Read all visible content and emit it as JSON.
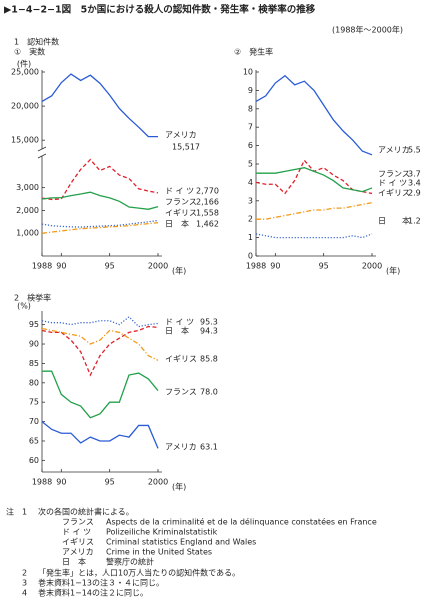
{
  "header": {
    "title": "▶1−4−2−1図　5か国における殺人の認知件数・発生率・検挙率の推移",
    "period": "(1988年～2000年)"
  },
  "chart_data": [
    {
      "type": "line",
      "section": "1　認知件数",
      "title": "①　実数",
      "y_label": "(件)",
      "x_label": "(年)",
      "x": [
        1988,
        1989,
        1990,
        1991,
        1992,
        1993,
        1994,
        1995,
        1996,
        1997,
        1998,
        1999,
        2000
      ],
      "xlim": [
        1988,
        2000
      ],
      "xticks": [
        1988,
        {
          "value": 1990,
          "label": "90"
        },
        {
          "value": 1995,
          "label": "95"
        },
        2000
      ],
      "ylim": [
        0,
        25000
      ],
      "axis_break": [
        4300,
        14000
      ],
      "yticks": [
        {
          "value": 1000,
          "label": "1,000"
        },
        {
          "value": 2000,
          "label": "2,000"
        },
        {
          "value": 3000,
          "label": "3,000"
        },
        {
          "value": 15000,
          "label": "15,000"
        },
        {
          "value": 20000,
          "label": "20,000"
        },
        {
          "value": 25000,
          "label": "25,000"
        }
      ],
      "series": [
        {
          "name": "アメリカ",
          "color": "#2a5bd7",
          "style": "solid",
          "values": [
            20680,
            21500,
            23440,
            24700,
            23760,
            24530,
            23330,
            21610,
            19650,
            18210,
            16910,
            15520,
            15517
          ],
          "value_labels": [
            null,
            null,
            null,
            null,
            null,
            null,
            null,
            null,
            null,
            null,
            null,
            null,
            "15,517"
          ]
        },
        {
          "name": "ド イ ツ",
          "color": "#e0202a",
          "style": "dashed",
          "values": [
            2540,
            2480,
            2500,
            3200,
            3800,
            4230,
            3750,
            3930,
            3550,
            3400,
            2950,
            2850,
            2770
          ],
          "value_labels": [
            null,
            null,
            null,
            null,
            null,
            null,
            null,
            null,
            null,
            null,
            null,
            null,
            "2,770"
          ]
        },
        {
          "name": "フランス",
          "color": "#21a04a",
          "style": "solid",
          "values": [
            2500,
            2550,
            2560,
            2650,
            2720,
            2800,
            2650,
            2550,
            2400,
            2150,
            2100,
            2050,
            2166
          ],
          "value_labels": [
            null,
            null,
            null,
            null,
            null,
            null,
            null,
            null,
            null,
            null,
            null,
            null,
            "2,166"
          ]
        },
        {
          "name": "イギリス",
          "color": "#3a66d0",
          "style": "dotted",
          "values": [
            1400,
            1330,
            1300,
            1280,
            1270,
            1290,
            1310,
            1330,
            1350,
            1400,
            1450,
            1500,
            1558
          ],
          "value_labels": [
            null,
            null,
            null,
            null,
            null,
            null,
            null,
            null,
            null,
            null,
            null,
            null,
            "1,558"
          ]
        },
        {
          "name": "日　本",
          "color": "#f29a1a",
          "style": "dashdot",
          "values": [
            1000,
            1050,
            1100,
            1150,
            1200,
            1220,
            1250,
            1280,
            1300,
            1330,
            1380,
            1420,
            1462
          ],
          "value_labels": [
            null,
            null,
            null,
            null,
            null,
            null,
            null,
            null,
            null,
            null,
            null,
            null,
            "1,462"
          ]
        }
      ]
    },
    {
      "type": "line",
      "title": "②　発生率",
      "x_label": "(年)",
      "x": [
        1988,
        1989,
        1990,
        1991,
        1992,
        1993,
        1994,
        1995,
        1996,
        1997,
        1998,
        1999,
        2000
      ],
      "xlim": [
        1988,
        2000
      ],
      "xticks": [
        1988,
        {
          "value": 1990,
          "label": "90"
        },
        {
          "value": 1995,
          "label": "95"
        },
        2000
      ],
      "ylim": [
        0,
        10
      ],
      "yticks": [
        0,
        1,
        2,
        3,
        4,
        5,
        6,
        7,
        8,
        9,
        10
      ],
      "series": [
        {
          "name": "アメリカ",
          "color": "#2a5bd7",
          "style": "solid",
          "values": [
            8.4,
            8.7,
            9.4,
            9.8,
            9.3,
            9.5,
            9.0,
            8.2,
            7.4,
            6.8,
            6.3,
            5.7,
            5.5
          ]
        },
        {
          "name": "ド イ ツ",
          "color": "#e0202a",
          "style": "dashed",
          "values": [
            4.0,
            3.9,
            3.9,
            3.4,
            4.1,
            5.2,
            4.6,
            4.8,
            4.4,
            4.1,
            3.6,
            3.5,
            3.4
          ]
        },
        {
          "name": "フランス",
          "color": "#21a04a",
          "style": "solid",
          "values": [
            4.5,
            4.5,
            4.5,
            4.6,
            4.7,
            4.8,
            4.6,
            4.4,
            4.1,
            3.7,
            3.6,
            3.5,
            3.7
          ]
        },
        {
          "name": "イギリス",
          "color": "#f29a1a",
          "style": "dashdot",
          "values": [
            2.0,
            2.0,
            2.1,
            2.2,
            2.3,
            2.4,
            2.5,
            2.5,
            2.6,
            2.6,
            2.7,
            2.8,
            2.9
          ]
        },
        {
          "name": "日　　本",
          "color": "#3a66d0",
          "style": "dotted",
          "values": [
            1.2,
            1.1,
            1.0,
            1.0,
            1.0,
            1.0,
            1.0,
            1.0,
            1.0,
            1.0,
            1.1,
            1.0,
            1.2
          ]
        }
      ]
    },
    {
      "type": "line",
      "title": "2　検挙率",
      "y_label": "(%)",
      "x_label": "(年)",
      "x": [
        1988,
        1989,
        1990,
        1991,
        1992,
        1993,
        1994,
        1995,
        1996,
        1997,
        1998,
        1999,
        2000
      ],
      "xlim": [
        1988,
        2000
      ],
      "xticks": [
        1988,
        {
          "value": 1990,
          "label": "90"
        },
        {
          "value": 1995,
          "label": "95"
        },
        2000
      ],
      "ylim": [
        57,
        98
      ],
      "yticks": [
        60,
        65,
        70,
        75,
        80,
        85,
        90,
        95
      ],
      "series": [
        {
          "name": "ド イ ツ",
          "color": "#3a66d0",
          "style": "dotted",
          "values": [
            96,
            95.5,
            95.5,
            95,
            95.5,
            95.5,
            96,
            96,
            95,
            97,
            94.5,
            95,
            95.3
          ]
        },
        {
          "name": "日　本",
          "color": "#e0202a",
          "style": "dashed",
          "values": [
            93.5,
            93,
            93,
            91,
            88,
            82,
            87,
            90,
            91.5,
            93,
            93.5,
            94.5,
            94.3
          ]
        },
        {
          "name": "イギリス",
          "color": "#f29a1a",
          "style": "dashdot",
          "values": [
            94,
            93.5,
            93,
            92.5,
            92,
            90,
            91,
            93.5,
            93,
            91.5,
            90,
            87,
            85.8
          ]
        },
        {
          "name": "フランス",
          "color": "#21a04a",
          "style": "solid",
          "values": [
            83,
            83,
            77,
            75,
            74,
            71,
            72,
            75,
            75,
            82,
            82.5,
            81,
            78
          ],
          "value_labels": [
            null,
            null,
            null,
            null,
            null,
            null,
            null,
            null,
            null,
            null,
            null,
            null,
            "78.0"
          ]
        },
        {
          "name": "アメリカ",
          "color": "#2a5bd7",
          "style": "solid",
          "values": [
            70,
            68,
            67,
            67,
            64.5,
            66,
            65,
            65,
            66.5,
            66,
            69,
            69,
            63.1
          ]
        }
      ]
    }
  ],
  "notes": {
    "mark": "注",
    "items": [
      {
        "number": "1",
        "text": "次の各国の統計書による。"
      },
      {
        "number": "2",
        "text": "「発生率」とは，人口10万人当たりの認知件数である。"
      },
      {
        "number": "3",
        "text": "巻末資料1−13の注３・４に同じ。"
      },
      {
        "number": "4",
        "text": "巻末資料1−14の注２に同じ。"
      }
    ],
    "sources": [
      {
        "country": "フランス",
        "source": "Aspects de la criminalité et de la délinquance constatées en France"
      },
      {
        "country": "ド イ ツ",
        "source": "Polizeiliche Kriminalstatistik"
      },
      {
        "country": "イギリス",
        "source": "Criminal statistics England and Wales"
      },
      {
        "country": "アメリカ",
        "source": "Crime in the United States"
      },
      {
        "country": "日　本",
        "source": "警察庁の統計"
      }
    ]
  }
}
